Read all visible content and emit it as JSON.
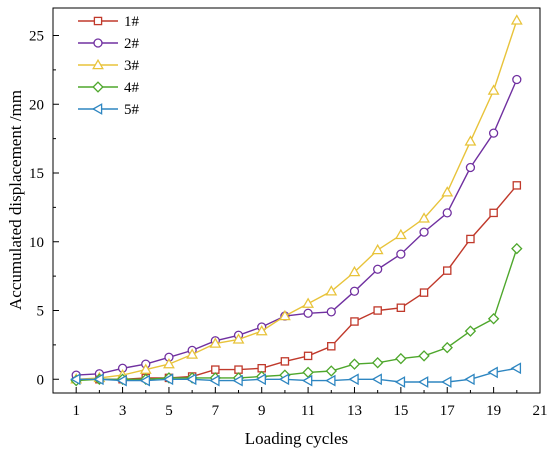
{
  "chart_data": {
    "type": "line",
    "xlabel": "Loading cycles",
    "ylabel": "Accumulated displacement /mm",
    "xlim": [
      0,
      21
    ],
    "ylim": [
      -1,
      27
    ],
    "xticks": [
      1,
      3,
      5,
      7,
      9,
      11,
      13,
      15,
      17,
      19,
      21
    ],
    "xtick_labels": [
      "1",
      "3",
      "5",
      "7",
      "9",
      "11",
      "13",
      "15",
      "17",
      "19",
      "21"
    ],
    "yticks": [
      0,
      5,
      10,
      15,
      20,
      25
    ],
    "ytick_labels": [
      "0",
      "5",
      "10",
      "15",
      "20",
      "25"
    ],
    "grid": false,
    "legend_position": "top-left",
    "x": [
      1,
      2,
      3,
      4,
      5,
      6,
      7,
      8,
      9,
      10,
      11,
      12,
      13,
      14,
      15,
      16,
      17,
      18,
      19,
      20
    ],
    "series": [
      {
        "name": "1#",
        "marker": "square",
        "color": "#c0392b",
        "values": [
          0.0,
          0.0,
          0.0,
          0.1,
          0.1,
          0.2,
          0.7,
          0.7,
          0.8,
          1.3,
          1.7,
          2.4,
          4.2,
          5.0,
          5.2,
          6.3,
          7.9,
          10.2,
          12.1,
          14.1
        ]
      },
      {
        "name": "2#",
        "marker": "circle",
        "color": "#7030a0",
        "values": [
          0.3,
          0.4,
          0.8,
          1.1,
          1.6,
          2.1,
          2.8,
          3.2,
          3.8,
          4.6,
          4.8,
          4.9,
          6.4,
          8.0,
          9.1,
          10.7,
          12.1,
          15.4,
          17.9,
          21.8
        ]
      },
      {
        "name": "3#",
        "marker": "triangle-up",
        "color": "#e8c33a",
        "values": [
          0.0,
          0.1,
          0.3,
          0.7,
          1.1,
          1.8,
          2.6,
          2.9,
          3.5,
          4.6,
          5.5,
          6.4,
          7.8,
          9.4,
          10.5,
          11.7,
          13.6,
          17.3,
          21.0,
          26.1
        ]
      },
      {
        "name": "4#",
        "marker": "diamond",
        "color": "#4ea72c",
        "values": [
          -0.1,
          0.0,
          0.0,
          0.0,
          0.1,
          0.1,
          0.1,
          0.1,
          0.2,
          0.3,
          0.5,
          0.6,
          1.1,
          1.2,
          1.5,
          1.7,
          2.3,
          3.5,
          4.4,
          9.5
        ]
      },
      {
        "name": "5#",
        "marker": "triangle-left",
        "color": "#2e86c1",
        "values": [
          0.0,
          0.0,
          -0.1,
          -0.1,
          0.0,
          0.0,
          -0.1,
          -0.1,
          0.0,
          0.0,
          -0.1,
          -0.1,
          0.0,
          0.0,
          -0.2,
          -0.2,
          -0.2,
          0.0,
          0.5,
          0.8
        ]
      }
    ]
  }
}
